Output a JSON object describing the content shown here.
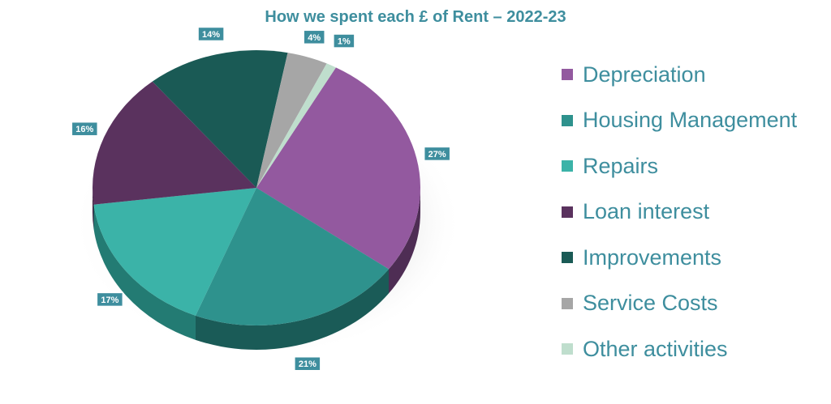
{
  "chart_data": {
    "type": "pie",
    "title": "How we spent each £ of Rent – 2022-23",
    "legend_position": "right",
    "slices": [
      {
        "label": "Depreciation",
        "value": 27,
        "display": "27%",
        "color": "#93599f",
        "side": "#4e2d54"
      },
      {
        "label": "Housing Management",
        "value": 21,
        "display": "21%",
        "color": "#2e928d",
        "side": "#1a5b57"
      },
      {
        "label": "Repairs",
        "value": 17,
        "display": "17%",
        "color": "#3bb3a8",
        "side": "#237b73"
      },
      {
        "label": "Loan interest",
        "value": 16,
        "display": "16%",
        "color": "#5a325e",
        "side": "#3a1f3e"
      },
      {
        "label": "Improvements",
        "value": 14,
        "display": "14%",
        "color": "#1a5a55",
        "side": "#0f3b37"
      },
      {
        "label": "Service Costs",
        "value": 4,
        "display": "4%",
        "color": "#a6a6a6",
        "side": "#7a7a7a"
      },
      {
        "label": "Other activities",
        "value": 1,
        "display": "1%",
        "color": "#bfdecd",
        "side": "#8fb3a0"
      }
    ]
  }
}
